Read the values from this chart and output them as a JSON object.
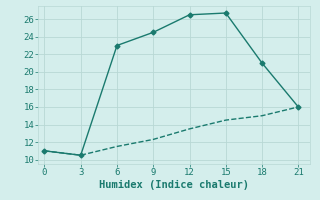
{
  "line1_x": [
    0,
    3,
    6,
    9,
    12,
    15,
    18,
    21
  ],
  "line1_y": [
    11,
    10.5,
    23,
    24.5,
    26.5,
    26.7,
    21,
    16
  ],
  "line2_x": [
    0,
    3,
    6,
    9,
    12,
    15,
    18,
    21
  ],
  "line2_y": [
    11,
    10.5,
    11.5,
    12.3,
    13.5,
    14.5,
    15.0,
    16
  ],
  "line_color": "#1a7a6e",
  "bg_color": "#d4eeec",
  "grid_color": "#b8d8d5",
  "xlabel": "Humidex (Indice chaleur)",
  "xlim": [
    -0.5,
    22
  ],
  "ylim": [
    9.5,
    27.5
  ],
  "xticks": [
    0,
    3,
    6,
    9,
    12,
    15,
    18,
    21
  ],
  "yticks": [
    10,
    12,
    14,
    16,
    18,
    20,
    22,
    24,
    26
  ],
  "xlabel_fontsize": 7.5,
  "tick_fontsize": 6.5,
  "marker_size": 2.5,
  "line_width": 1.0
}
